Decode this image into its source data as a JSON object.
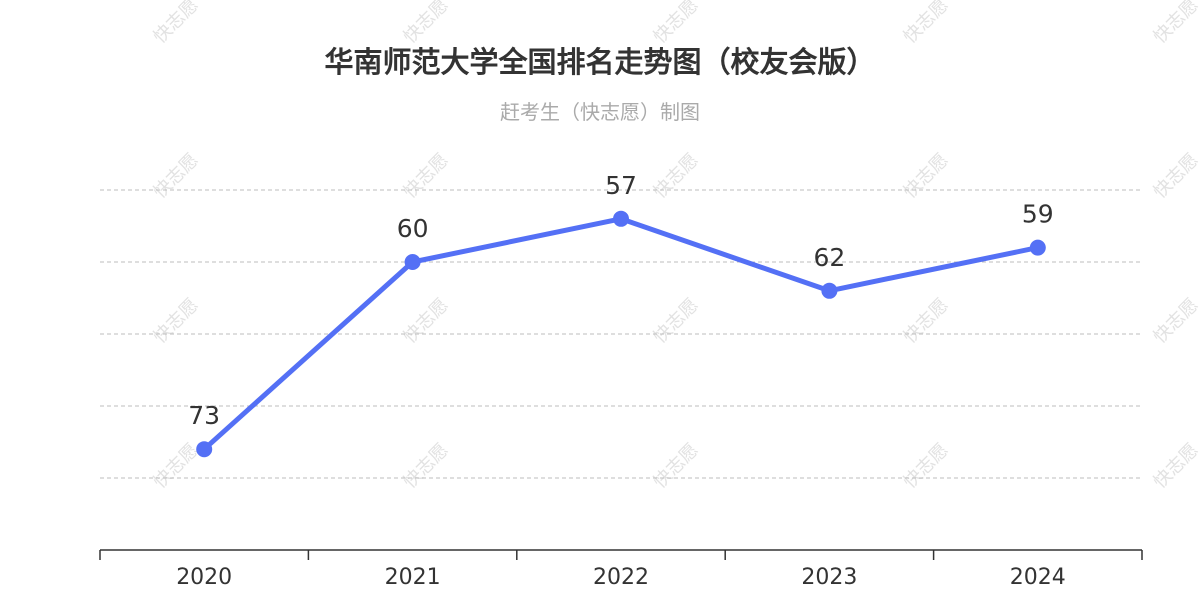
{
  "watermark": "快志愿",
  "chart_data": {
    "type": "line",
    "title": "华南师范大学全国排名走势图（校友会版）",
    "subtitle": "赶考生（快志愿）制图",
    "categories": [
      "2020",
      "2021",
      "2022",
      "2023",
      "2024"
    ],
    "series": [
      {
        "values": [
          73,
          60,
          57,
          62,
          59
        ]
      }
    ],
    "y_inverted": true,
    "ylim": [
      55,
      80
    ],
    "grid": true,
    "show_y_tick_labels": false,
    "line_color": "#5470f5"
  }
}
